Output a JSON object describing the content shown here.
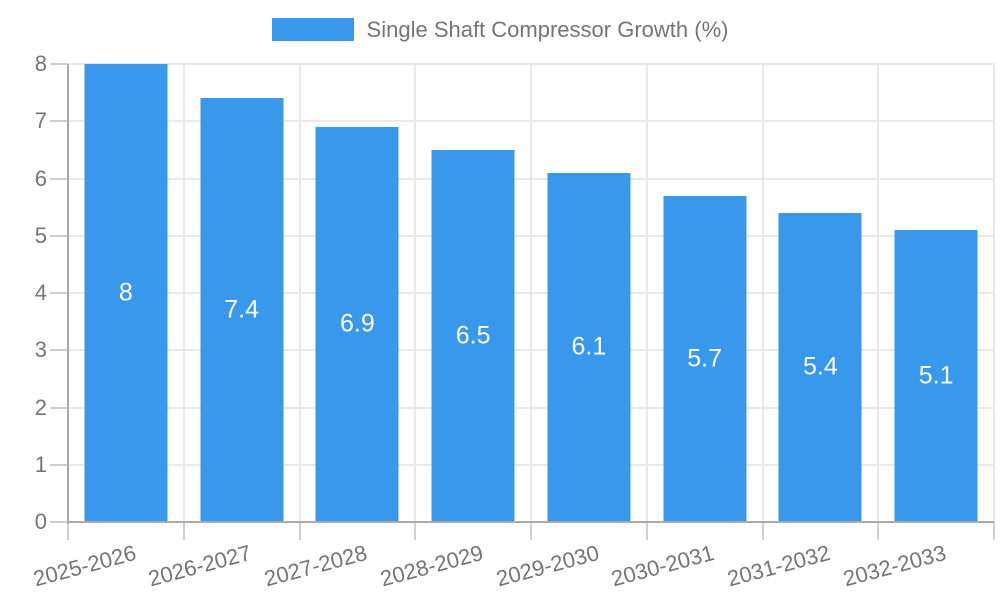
{
  "chart_data": {
    "type": "bar",
    "legend_label": "Single Shaft Compressor Growth (%)",
    "categories": [
      "2025-2026",
      "2026-2027",
      "2027-2028",
      "2028-2029",
      "2029-2030",
      "2030-2031",
      "2031-2032",
      "2032-2033"
    ],
    "values": [
      8,
      7.4,
      6.9,
      6.5,
      6.1,
      5.7,
      5.4,
      5.1
    ],
    "value_labels": [
      "8",
      "7.4",
      "6.9",
      "6.5",
      "6.1",
      "5.7",
      "5.4",
      "5.1"
    ],
    "ylim": [
      0,
      8
    ],
    "yticks": [
      0,
      1,
      2,
      3,
      4,
      5,
      6,
      7,
      8
    ],
    "grid": true,
    "legend_position": "top",
    "xlabel": "",
    "ylabel": "",
    "colors": {
      "bar": "#3898ec",
      "value_label": "#ffffff",
      "axis_text": "#757575",
      "gridline": "#e9e9e9",
      "axis_line": "#aaaaaa",
      "tick": "#cfcfcf",
      "background": "#ffffff"
    }
  }
}
